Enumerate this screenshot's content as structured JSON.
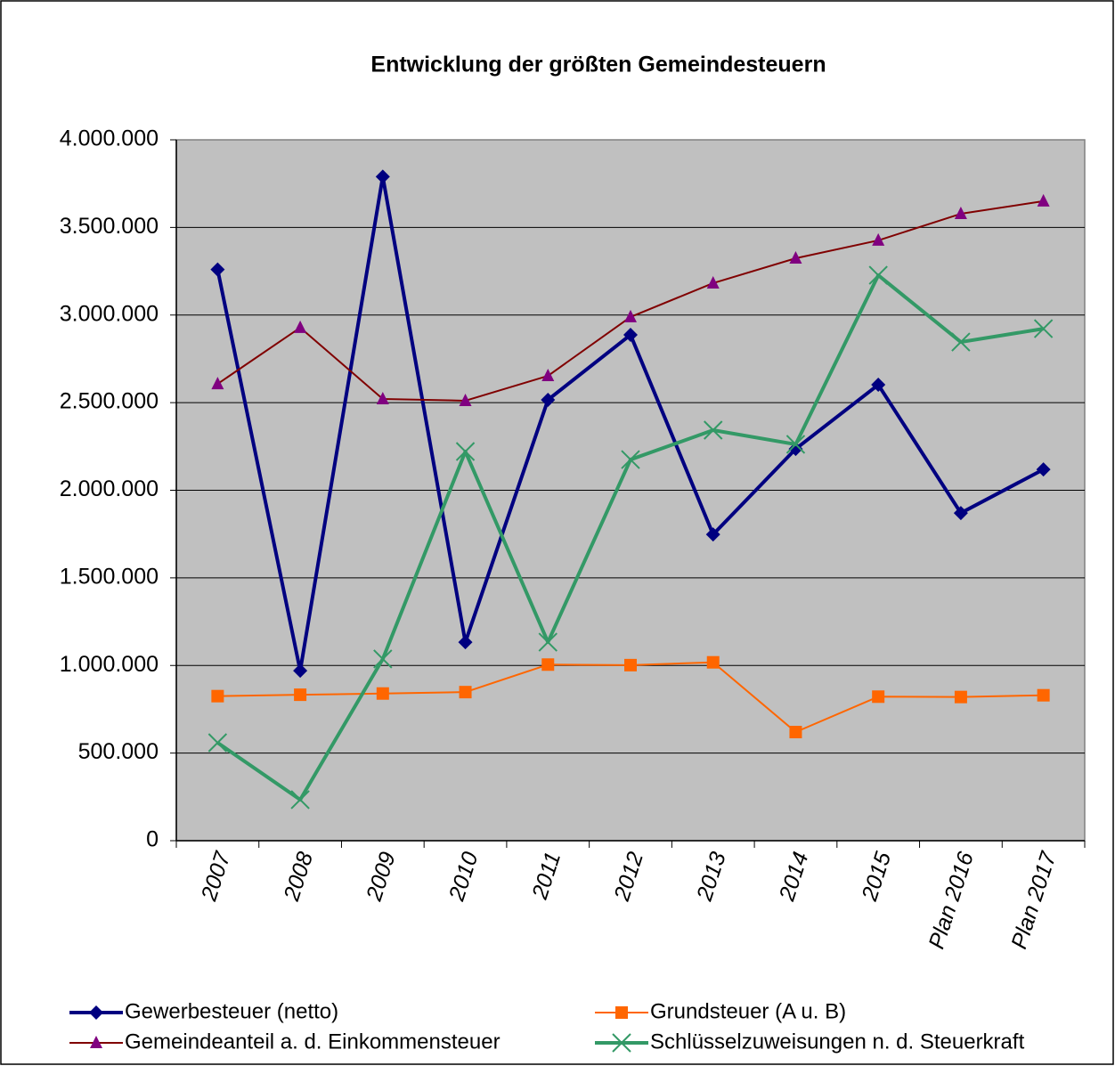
{
  "chart_data": {
    "type": "line",
    "title": "Entwicklung der größten Gemeindesteuern",
    "categories": [
      "2007",
      "2008",
      "2009",
      "2010",
      "2011",
      "2012",
      "2013",
      "2014",
      "2015",
      "Plan 2016",
      "Plan 2017"
    ],
    "series": [
      {
        "name": "Gewerbesteuer (netto)",
        "color": "#000080",
        "marker_color": "#000080",
        "marker": "diamond",
        "line_width": 4,
        "values": [
          3260000,
          970000,
          3790000,
          1133000,
          2516000,
          2887000,
          1748000,
          2236000,
          2602000,
          1870000,
          2119000
        ]
      },
      {
        "name": "Grundsteuer (A u. B)",
        "color": "#ff6600",
        "marker_color": "#ff6600",
        "marker": "square",
        "line_width": 2,
        "values": [
          825000,
          833000,
          840000,
          848000,
          1005000,
          1002000,
          1018000,
          620000,
          822000,
          820000,
          830000
        ]
      },
      {
        "name": "Gemeindeanteil a. d. Einkommensteuer",
        "color": "#800000",
        "marker_color": "#800080",
        "marker": "triangle",
        "line_width": 2,
        "values": [
          2607000,
          2928000,
          2521000,
          2511000,
          2653000,
          2989000,
          3182000,
          3324000,
          3426000,
          3578000,
          3650000
        ]
      },
      {
        "name": "Schlüsselzuweisungen n. d. Steuerkraft",
        "color": "#339966",
        "marker_color": "#339966",
        "marker": "x",
        "line_width": 4,
        "values": [
          559000,
          234000,
          1037000,
          2221000,
          1133000,
          2175000,
          2343000,
          2262000,
          3227000,
          2846000,
          2922000
        ]
      }
    ],
    "ylim": [
      0,
      4000000
    ],
    "yticks": [
      0,
      {
        "value": 500000,
        "label": "500.000"
      },
      {
        "value": 1000000,
        "label": "1.000.000"
      },
      {
        "value": 1500000,
        "label": "1.500.000"
      },
      {
        "value": 2000000,
        "label": "2.000.000"
      },
      {
        "value": 2500000,
        "label": "2.500.000"
      },
      {
        "value": 3000000,
        "label": "3.000.000"
      },
      {
        "value": 3500000,
        "label": "3.500.000"
      },
      {
        "value": 4000000,
        "label": "4.000.000"
      }
    ],
    "grid": true,
    "plot_background": "#c0c0c0",
    "legend": "bottom"
  }
}
